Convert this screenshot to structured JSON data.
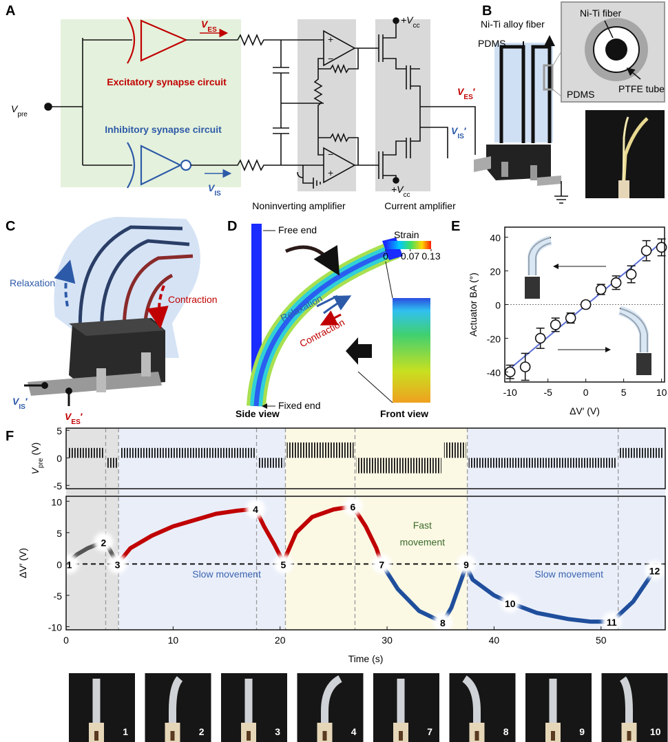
{
  "panel_labels": [
    "A",
    "B",
    "C",
    "D",
    "E",
    "F"
  ],
  "circuit": {
    "v_es": {
      "base": "V",
      "sub": "ES"
    },
    "excitatory": "Excitatory synapse circuit",
    "inhibitory": "Inhibitory synapse circuit",
    "v_pre": {
      "base": "V",
      "sub": "pre"
    },
    "v_is": {
      "base": "V",
      "sub": "IS"
    },
    "vcc_top": {
      "base": "+V",
      "sub": "cc"
    },
    "vcc_bottom": {
      "base": "+V",
      "sub": "cc"
    },
    "noninverting": "Noninverting amplifier",
    "current": "Current amplifier"
  },
  "device_b": {
    "fiber": "Ni-Ti alloy fiber",
    "pdms": "PDMS",
    "inset_fiber": "Ni-Ti fiber",
    "inset_pdms": "PDMS",
    "inset_tube": "PTFE tube",
    "v_es": {
      "base": "V",
      "sub": "ES",
      "prime": "′"
    },
    "v_is": {
      "base": "V",
      "sub": "IS",
      "prime": "′"
    }
  },
  "device_c": {
    "relaxation": "Relaxation",
    "contraction": "Contraction",
    "v_is": {
      "base": "V",
      "sub": "IS",
      "prime": "′"
    },
    "v_es": {
      "base": "V",
      "sub": "ES",
      "prime": "′"
    }
  },
  "strain_d": {
    "free_end": "Free end",
    "strain": "Strain",
    "colorbar_lim": [
      0,
      0.13
    ],
    "colorbar_ticks": [
      0,
      0.07,
      0.13
    ],
    "relaxation": "Relaxation",
    "contraction": "Contraction",
    "side_view": "Side view",
    "fixed_end": "Fixed end",
    "front_view": "Front view"
  },
  "chart_data": [
    {
      "type": "scatter",
      "ylabel": "Actuator BA (°)",
      "xlabel": "ΔV′ (V)",
      "x": [
        -10,
        -8,
        -6,
        -4,
        -2,
        0,
        2,
        4,
        6,
        8,
        10
      ],
      "values": [
        -40,
        -37,
        -20,
        -12,
        -8,
        0,
        9,
        13,
        18,
        32,
        34
      ],
      "errors": [
        4,
        8,
        6,
        4,
        3,
        2,
        3,
        4,
        5,
        6,
        5
      ],
      "fit": {
        "x": [
          -10,
          10
        ],
        "y": [
          -38,
          37
        ]
      },
      "xlim": [
        -10.7,
        10.4
      ],
      "ylim": [
        -46,
        46
      ],
      "xticks": [
        -10,
        -5,
        0,
        5,
        10
      ],
      "yticks": [
        -40,
        -20,
        0,
        20,
        40
      ],
      "color": "#5b6fd6"
    },
    {
      "type": "pulse",
      "ylabel": {
        "base": "V",
        "sub": "pre",
        "unit": "(V)"
      },
      "xlim": [
        0,
        56
      ],
      "ylim": [
        -5.6,
        5.4
      ],
      "yticks": [
        -5,
        0,
        5
      ],
      "segments": [
        {
          "x": [
            0,
            3.7
          ],
          "value": 1.8
        },
        {
          "x": [
            3.7,
            4.9
          ],
          "value": -1.8
        },
        {
          "x": [
            4.9,
            17.8
          ],
          "value": 1.8
        },
        {
          "x": [
            17.8,
            20.5
          ],
          "value": -1.8
        },
        {
          "x": [
            20.5,
            27
          ],
          "value": 2.8
        },
        {
          "x": [
            27,
            35.2
          ],
          "value": -2.8
        },
        {
          "x": [
            35.2,
            37.5
          ],
          "value": 2.8
        },
        {
          "x": [
            37.5,
            51.6
          ],
          "value": -1.8
        },
        {
          "x": [
            51.6,
            56
          ],
          "value": 1.8
        }
      ],
      "color": "#111111"
    },
    {
      "type": "line",
      "ylabel": "ΔV′ (V)",
      "xlabel": "Time (s)",
      "xlim": [
        0,
        56
      ],
      "ylim": [
        -10.5,
        10.8
      ],
      "xticks": [
        0,
        10,
        20,
        30,
        40,
        50
      ],
      "yticks": [
        -10,
        -5,
        0,
        5,
        10
      ],
      "regions": [
        {
          "x": [
            0,
            4.9
          ],
          "color": "#e2e2e2"
        },
        {
          "x": [
            4.9,
            20.5
          ],
          "color": "#e9eef9"
        },
        {
          "x": [
            20.5,
            37.5
          ],
          "color": "#fbf8e4"
        },
        {
          "x": [
            37.5,
            56
          ],
          "color": "#e9eef9"
        }
      ],
      "boundaries": [
        3.7,
        4.9,
        17.8,
        20.5,
        27,
        37.5,
        51.6
      ],
      "series": [
        {
          "color": "#555555",
          "x": [
            0,
            1,
            2,
            3,
            3.5,
            4,
            4.8
          ],
          "values": [
            0,
            1.5,
            2.5,
            3.2,
            3.5,
            2.5,
            0
          ]
        },
        {
          "color": "#c00000",
          "x": [
            4.8,
            6,
            8,
            10,
            12,
            14,
            16,
            17.7,
            18.5,
            19.5,
            20.3,
            21.5,
            23,
            25,
            26.8,
            28,
            29,
            29.5
          ],
          "values": [
            0,
            2.5,
            4.5,
            6,
            7,
            8,
            8.5,
            8.8,
            6,
            3,
            0.3,
            5,
            7.5,
            8.7,
            9.2,
            6,
            2.5,
            0
          ]
        },
        {
          "color": "#1f4e9c",
          "x": [
            29.5,
            31,
            33,
            35.2,
            36,
            37.4,
            38,
            40,
            41.5,
            44,
            47,
            49,
            51,
            53,
            55
          ],
          "values": [
            0,
            -4,
            -7.5,
            -9.3,
            -7,
            -0.3,
            -2.5,
            -5,
            -6.2,
            -7.8,
            -8.8,
            -9.2,
            -9.2,
            -6,
            -1
          ]
        }
      ],
      "markers": [
        {
          "label": "1",
          "x": 0.3,
          "y": 0
        },
        {
          "label": "2",
          "x": 3.5,
          "y": 3.5
        },
        {
          "label": "3",
          "x": 4.8,
          "y": 0
        },
        {
          "label": "4",
          "x": 17.7,
          "y": 8.8
        },
        {
          "label": "5",
          "x": 20.3,
          "y": 0
        },
        {
          "label": "6",
          "x": 26.8,
          "y": 9.2
        },
        {
          "label": "7",
          "x": 29.5,
          "y": 0
        },
        {
          "label": "8",
          "x": 35.2,
          "y": -9.3
        },
        {
          "label": "9",
          "x": 37.4,
          "y": 0
        },
        {
          "label": "10",
          "x": 41.5,
          "y": -6.2
        },
        {
          "label": "11",
          "x": 51,
          "y": -9.2
        },
        {
          "label": "12",
          "x": 55,
          "y": -1
        }
      ],
      "annotations": [
        "Slow movement",
        "Fast",
        "movement",
        "Slow movement"
      ],
      "annotation_colors": [
        "#3b64b0",
        "#3b6b2b",
        "#3b6b2b",
        "#3b64b0"
      ]
    }
  ],
  "photos": {
    "labels": [
      "1",
      "2",
      "3",
      "4",
      "7",
      "8",
      "9",
      "10"
    ],
    "bend": [
      0,
      0.35,
      0,
      0.75,
      0,
      -0.6,
      0,
      -0.3
    ]
  }
}
